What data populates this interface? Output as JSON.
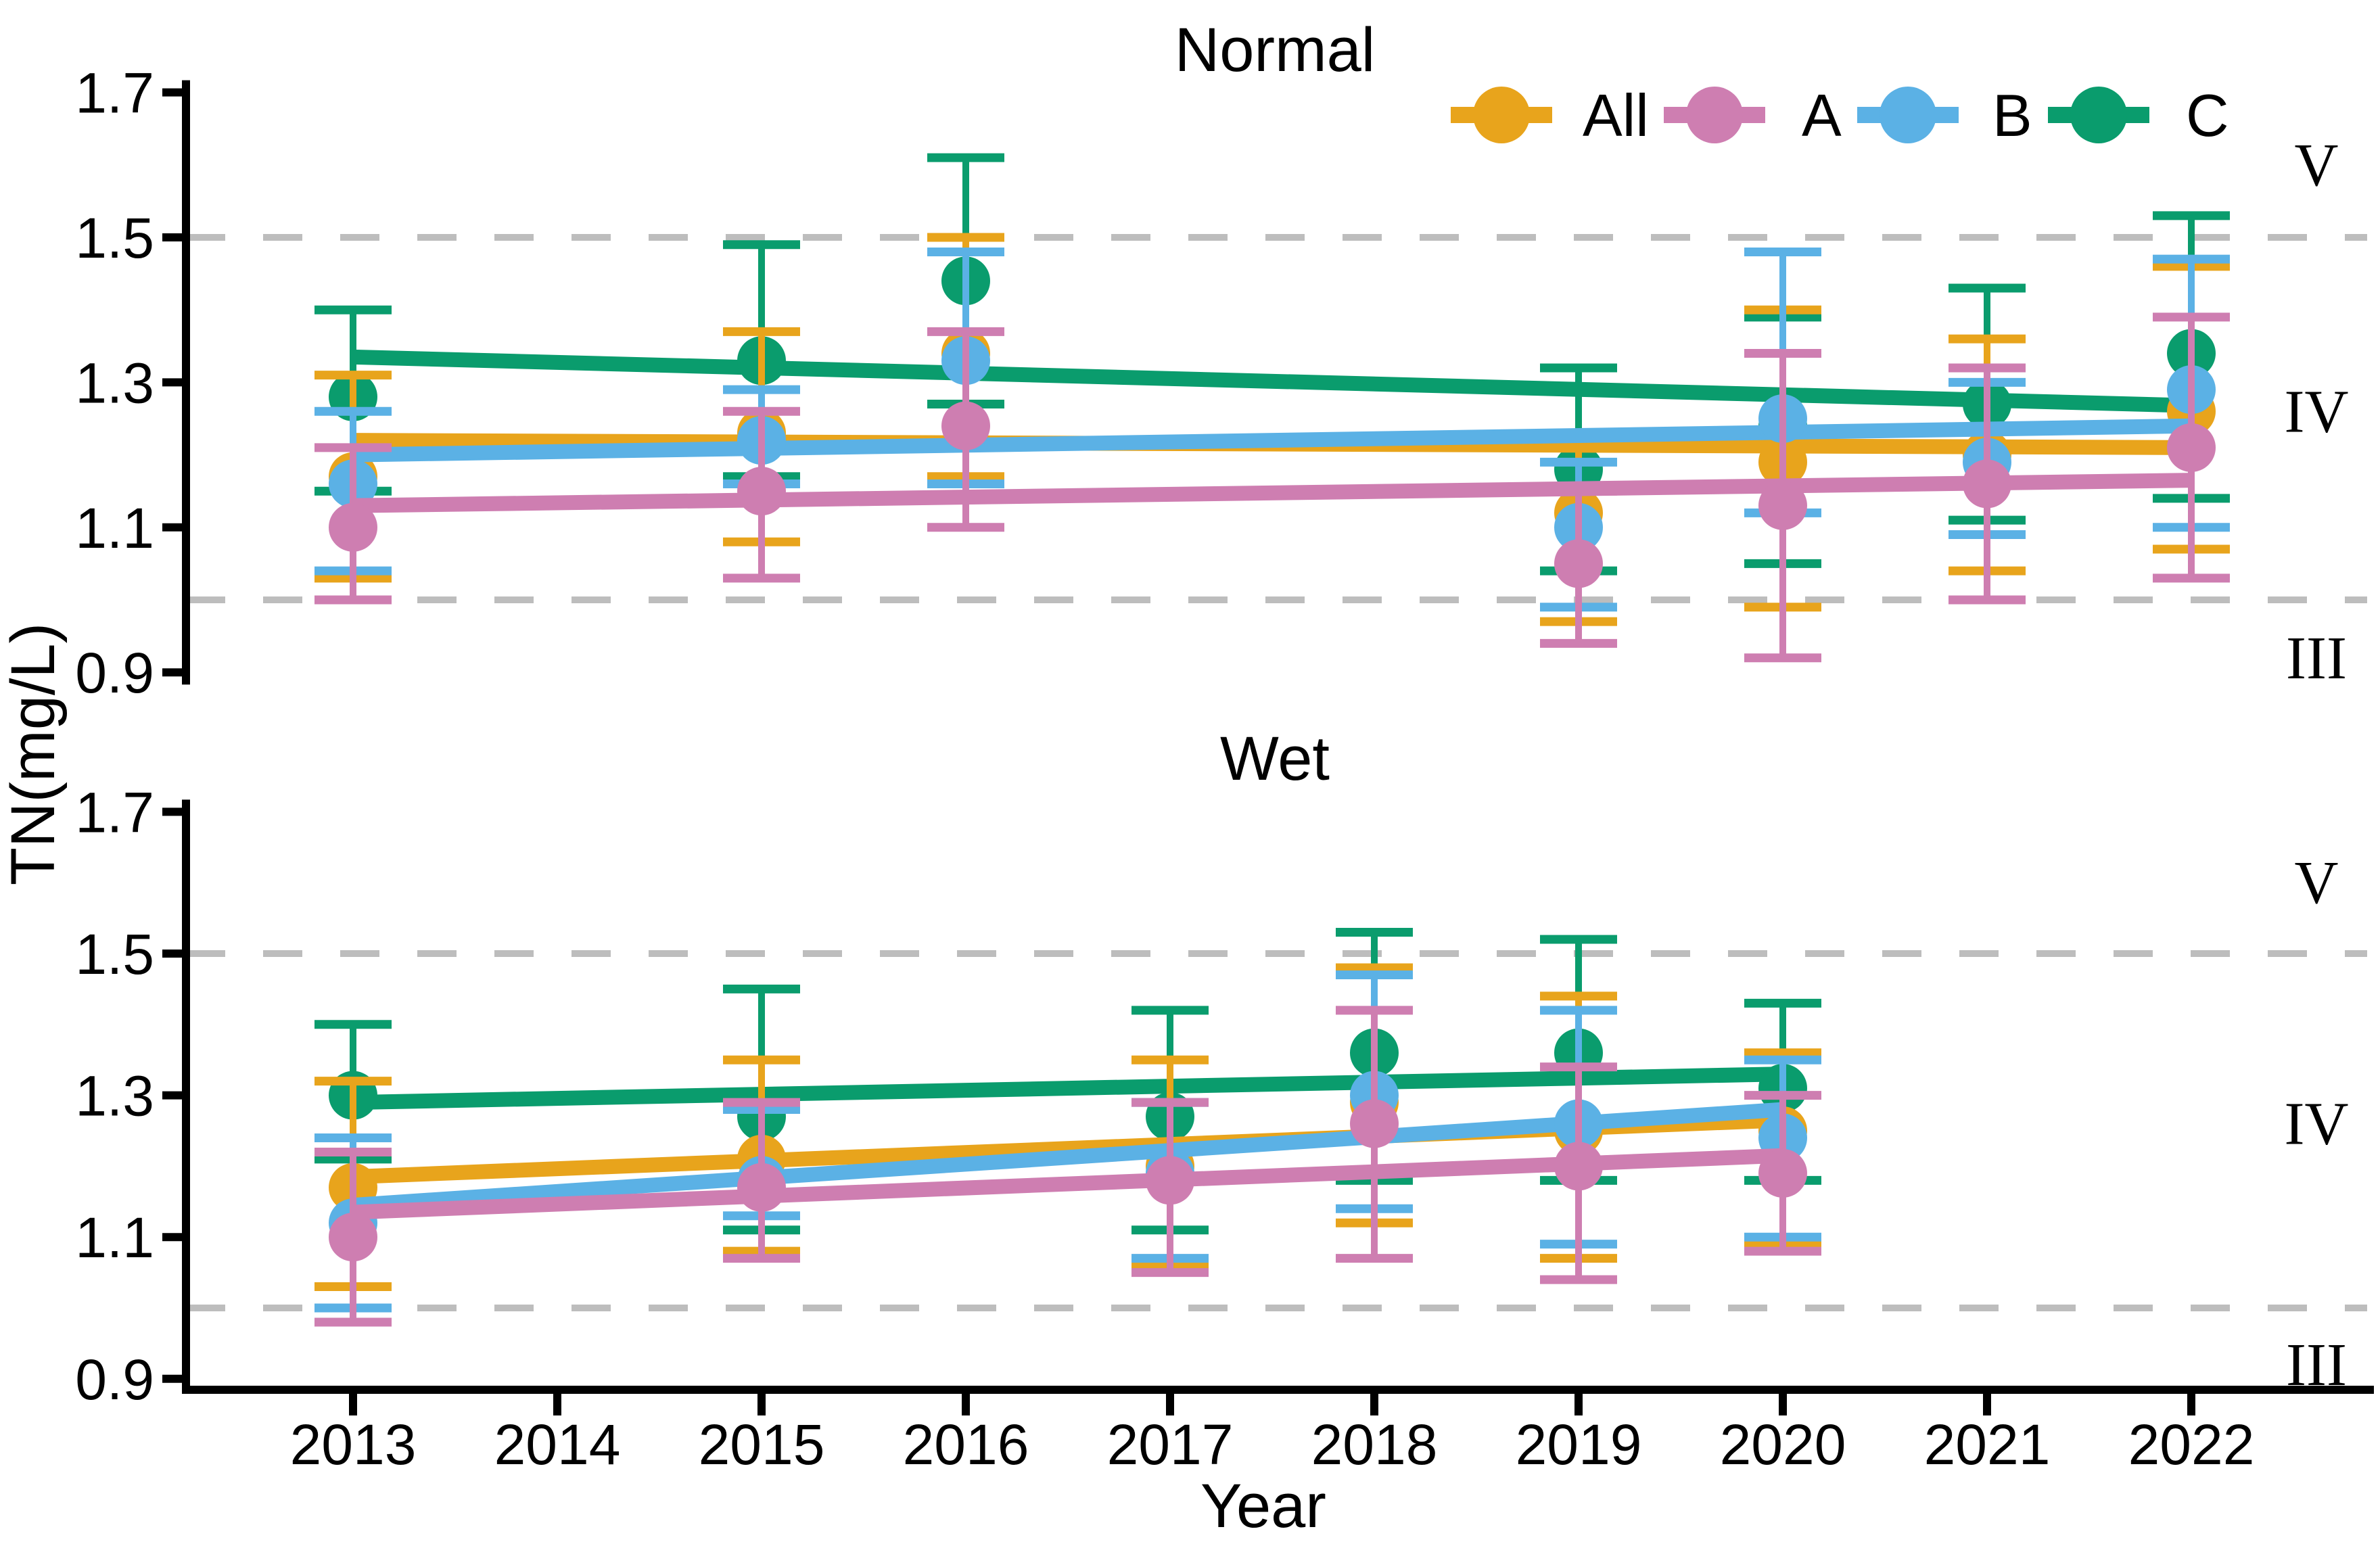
{
  "figure": {
    "kind": "faceted errorbar trend chart",
    "background": "#ffffff"
  },
  "colors": {
    "all": "#E8A41C",
    "a": "#CE7EB1",
    "b": "#5BB1E5",
    "c": "#0A9C6D",
    "dashed_ref": "#BDBDBD",
    "axis": "#000000"
  },
  "legend": {
    "items": [
      {
        "id": "all",
        "label": "All"
      },
      {
        "id": "a",
        "label": "A"
      },
      {
        "id": "b",
        "label": "B"
      },
      {
        "id": "c",
        "label": "C"
      }
    ]
  },
  "axes": {
    "y_label": "TN(mg/L)",
    "x_label": "Year",
    "y_ticks": [
      "1.7",
      "1.5",
      "1.3",
      "1.1",
      "0.9"
    ],
    "x_ticks": [
      "2013",
      "2014",
      "2015",
      "2016",
      "2017",
      "2018",
      "2019",
      "2020",
      "2021",
      "2022"
    ]
  },
  "reference": {
    "lines": [
      1.5,
      1.0
    ],
    "zones": [
      {
        "label": "V",
        "value": 1.6
      },
      {
        "label": "IV",
        "value": 1.26
      },
      {
        "label": "III",
        "value": 0.92
      }
    ]
  },
  "chart_data": [
    {
      "type": "line",
      "title": "Normal",
      "xlabel": "Year",
      "ylabel": "TN(mg/L)",
      "x_range": [
        2012.4,
        2022.6
      ],
      "ylim": [
        0.86,
        1.72
      ],
      "y_ticks": [
        1.7,
        1.5,
        1.3,
        1.1,
        0.9
      ],
      "grid": false,
      "legend_position": "top-right-inside",
      "series": [
        {
          "name": "All",
          "color_id": "all",
          "points": [
            [
              2013,
              1.17,
              1.03,
              1.31
            ],
            [
              2015,
              1.23,
              1.08,
              1.37
            ],
            [
              2016,
              1.34,
              1.17,
              1.5
            ],
            [
              2019,
              1.12,
              0.97,
              1.23
            ],
            [
              2020,
              1.19,
              0.99,
              1.4
            ],
            [
              2021,
              1.2,
              1.04,
              1.36
            ],
            [
              2022,
              1.26,
              1.07,
              1.46
            ]
          ],
          "trend": [
            [
              2013,
              1.22
            ],
            [
              2022,
              1.21
            ]
          ]
        },
        {
          "name": "A",
          "color_id": "a",
          "points": [
            [
              2013,
              1.1,
              1.0,
              1.21
            ],
            [
              2015,
              1.15,
              1.03,
              1.26
            ],
            [
              2016,
              1.24,
              1.1,
              1.37
            ],
            [
              2019,
              1.05,
              0.94,
              1.15
            ],
            [
              2020,
              1.13,
              0.92,
              1.34
            ],
            [
              2021,
              1.16,
              1.0,
              1.32
            ],
            [
              2022,
              1.21,
              1.03,
              1.39
            ]
          ],
          "trend": [
            [
              2013,
              1.13
            ],
            [
              2022,
              1.165
            ]
          ]
        },
        {
          "name": "B",
          "color_id": "b",
          "points": [
            [
              2013,
              1.16,
              1.04,
              1.26
            ],
            [
              2015,
              1.22,
              1.16,
              1.29
            ],
            [
              2016,
              1.33,
              1.16,
              1.48
            ],
            [
              2019,
              1.1,
              0.99,
              1.19
            ],
            [
              2020,
              1.25,
              1.12,
              1.48
            ],
            [
              2021,
              1.19,
              1.09,
              1.3
            ],
            [
              2022,
              1.29,
              1.1,
              1.47
            ]
          ],
          "trend": [
            [
              2013,
              1.2
            ],
            [
              2022,
              1.24
            ]
          ]
        },
        {
          "name": "C",
          "color_id": "c",
          "points": [
            [
              2013,
              1.28,
              1.15,
              1.4
            ],
            [
              2015,
              1.33,
              1.17,
              1.49
            ],
            [
              2016,
              1.44,
              1.27,
              1.61
            ],
            [
              2019,
              1.18,
              1.04,
              1.32
            ],
            [
              2020,
              1.24,
              1.05,
              1.39
            ],
            [
              2021,
              1.27,
              1.11,
              1.43
            ],
            [
              2022,
              1.34,
              1.14,
              1.53
            ]
          ],
          "trend": [
            [
              2013,
              1.335
            ],
            [
              2022,
              1.268
            ]
          ]
        }
      ]
    },
    {
      "type": "line",
      "title": "Wet",
      "xlabel": "Year",
      "ylabel": "TN(mg/L)",
      "x_range": [
        2012.4,
        2022.6
      ],
      "ylim": [
        0.86,
        1.72
      ],
      "y_ticks": [
        1.7,
        1.5,
        1.3,
        1.1,
        0.9
      ],
      "grid": false,
      "legend_position": "none",
      "series": [
        {
          "name": "All",
          "color_id": "all",
          "points": [
            [
              2013,
              1.17,
              1.03,
              1.32
            ],
            [
              2015,
              1.21,
              1.08,
              1.35
            ],
            [
              2017,
              1.2,
              1.06,
              1.35
            ],
            [
              2018,
              1.29,
              1.12,
              1.48
            ],
            [
              2019,
              1.25,
              1.07,
              1.44
            ],
            [
              2020,
              1.25,
              1.09,
              1.36
            ]
          ],
          "trend": [
            [
              2013,
              1.185
            ],
            [
              2020,
              1.265
            ]
          ]
        },
        {
          "name": "A",
          "color_id": "a",
          "points": [
            [
              2013,
              1.1,
              0.98,
              1.22
            ],
            [
              2015,
              1.17,
              1.07,
              1.29
            ],
            [
              2017,
              1.18,
              1.05,
              1.29
            ],
            [
              2018,
              1.26,
              1.07,
              1.42
            ],
            [
              2019,
              1.2,
              1.04,
              1.34
            ],
            [
              2020,
              1.19,
              1.08,
              1.3
            ]
          ],
          "trend": [
            [
              2013,
              1.135
            ],
            [
              2020,
              1.215
            ]
          ]
        },
        {
          "name": "B",
          "color_id": "b",
          "points": [
            [
              2013,
              1.12,
              1.0,
              1.24
            ],
            [
              2015,
              1.18,
              1.13,
              1.28
            ],
            [
              2017,
              1.19,
              1.07,
              1.29
            ],
            [
              2018,
              1.3,
              1.14,
              1.47
            ],
            [
              2019,
              1.26,
              1.09,
              1.42
            ],
            [
              2020,
              1.24,
              1.1,
              1.35
            ]
          ],
          "trend": [
            [
              2013,
              1.145
            ],
            [
              2020,
              1.28
            ]
          ]
        },
        {
          "name": "C",
          "color_id": "c",
          "points": [
            [
              2013,
              1.3,
              1.21,
              1.4
            ],
            [
              2015,
              1.27,
              1.11,
              1.45
            ],
            [
              2017,
              1.27,
              1.11,
              1.42
            ],
            [
              2018,
              1.36,
              1.18,
              1.53
            ],
            [
              2019,
              1.36,
              1.18,
              1.52
            ],
            [
              2020,
              1.31,
              1.18,
              1.43
            ]
          ],
          "trend": [
            [
              2013,
              1.29
            ],
            [
              2020,
              1.33
            ]
          ]
        }
      ]
    }
  ]
}
